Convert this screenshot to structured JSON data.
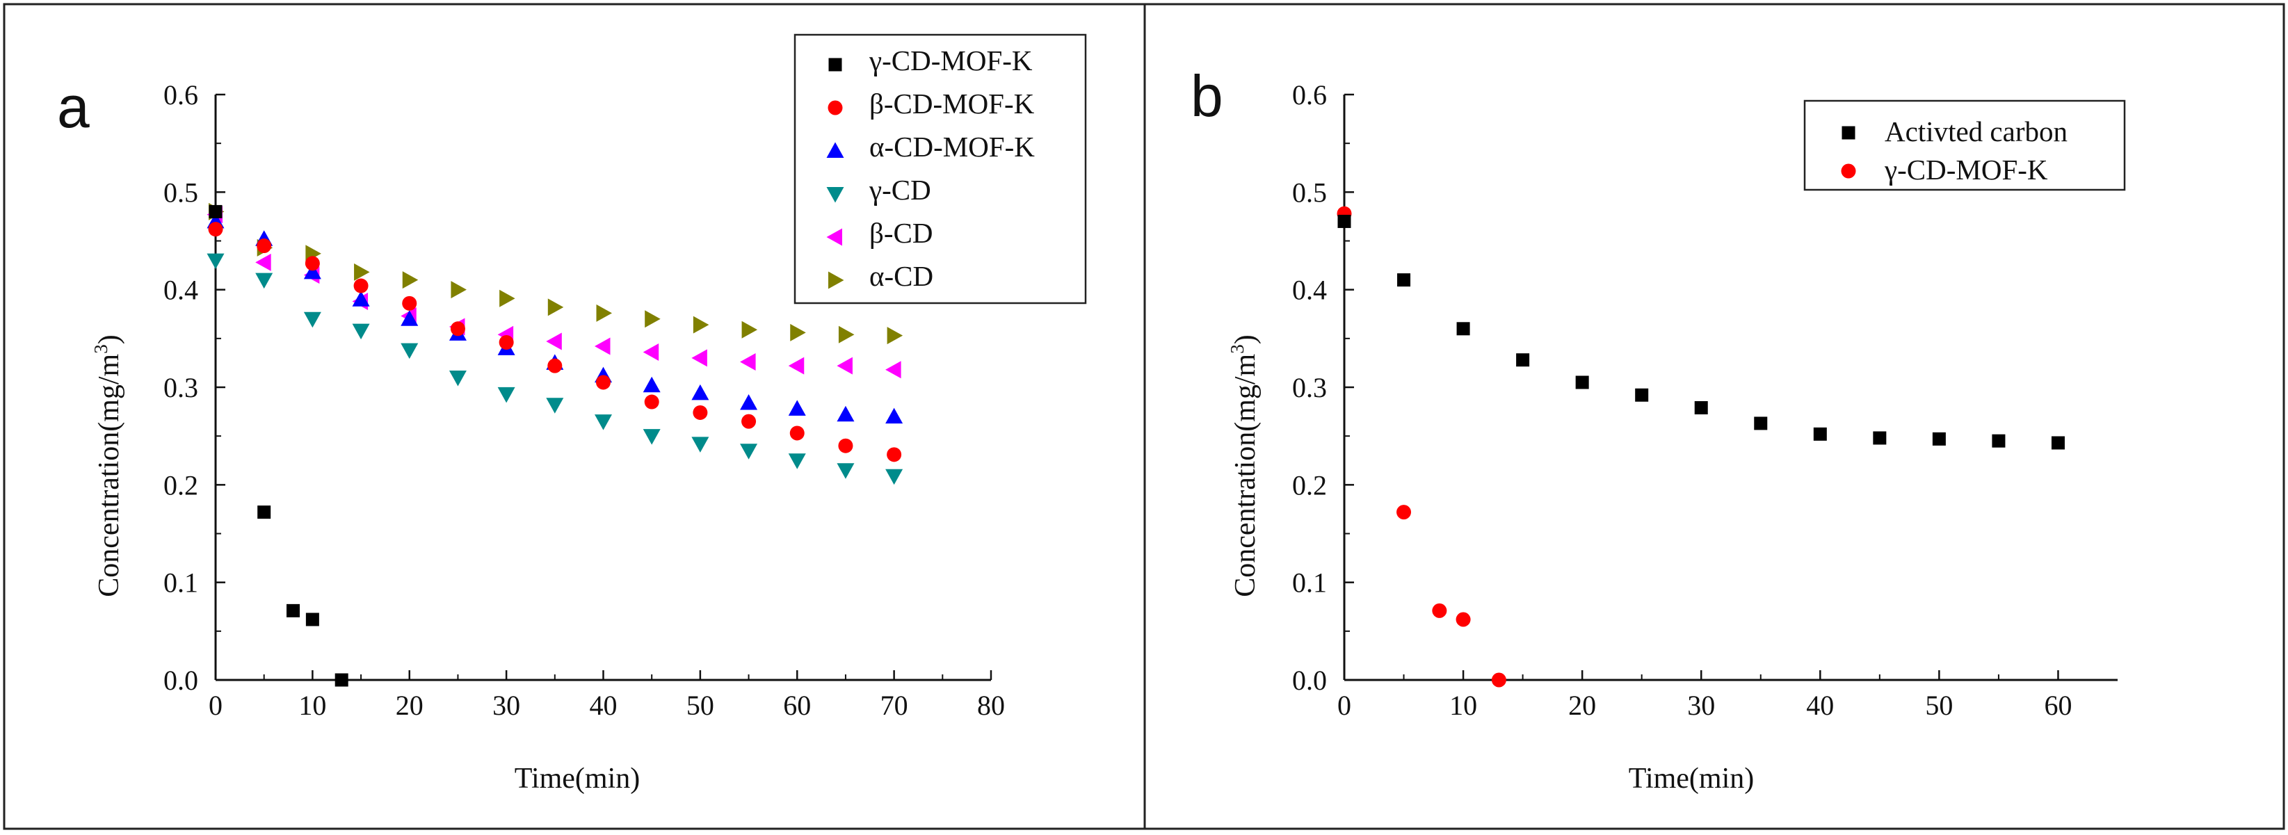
{
  "chart_data": [
    {
      "type": "scatter",
      "panel_label": "a",
      "title": "",
      "xlabel": "Time(min)",
      "ylabel": "Concentration(mg/m³)",
      "ylabel_main": "Concentration(mg/m",
      "ylabel_sup": "3",
      "ylabel_close": ")",
      "xlim": [
        0,
        80
      ],
      "ylim": [
        0,
        0.6
      ],
      "xticks": [
        "0",
        "10",
        "20",
        "30",
        "40",
        "50",
        "60",
        "70",
        "80"
      ],
      "yticks": [
        "0.0",
        "0.1",
        "0.2",
        "0.3",
        "0.4",
        "0.5",
        "0.6"
      ],
      "grid": false,
      "legend_position": "top-right",
      "series": [
        {
          "name": "γ-CD-MOF-K",
          "marker": "square",
          "color": "#000000",
          "x": [
            0,
            5,
            8,
            10,
            13
          ],
          "y": [
            0.48,
            0.172,
            0.071,
            0.062,
            0.0
          ]
        },
        {
          "name": "β-CD-MOF-K",
          "marker": "circle",
          "color": "#ff0000",
          "x": [
            0,
            5,
            10,
            15,
            20,
            25,
            30,
            35,
            40,
            45,
            50,
            55,
            60,
            65,
            70
          ],
          "y": [
            0.462,
            0.445,
            0.427,
            0.404,
            0.386,
            0.36,
            0.346,
            0.322,
            0.305,
            0.285,
            0.274,
            0.265,
            0.253,
            0.24,
            0.231
          ]
        },
        {
          "name": "α-CD-MOF-K",
          "marker": "triangle-up",
          "color": "#0000ff",
          "x": [
            0,
            5,
            10,
            15,
            20,
            25,
            30,
            35,
            40,
            45,
            50,
            55,
            60,
            65,
            70
          ],
          "y": [
            0.47,
            0.452,
            0.418,
            0.39,
            0.37,
            0.355,
            0.34,
            0.325,
            0.312,
            0.302,
            0.294,
            0.284,
            0.278,
            0.272,
            0.27
          ]
        },
        {
          "name": "γ-CD",
          "marker": "triangle-down",
          "color": "#008b8b",
          "x": [
            0,
            5,
            10,
            15,
            20,
            25,
            30,
            35,
            40,
            45,
            50,
            55,
            60,
            65,
            70
          ],
          "y": [
            0.43,
            0.41,
            0.37,
            0.358,
            0.338,
            0.31,
            0.293,
            0.282,
            0.265,
            0.25,
            0.242,
            0.235,
            0.225,
            0.215,
            0.209
          ]
        },
        {
          "name": "β-CD",
          "marker": "triangle-left",
          "color": "#ff00ff",
          "x": [
            0,
            5,
            10,
            15,
            20,
            25,
            30,
            35,
            40,
            45,
            50,
            55,
            60,
            65,
            70
          ],
          "y": [
            0.477,
            0.428,
            0.415,
            0.388,
            0.373,
            0.362,
            0.354,
            0.347,
            0.342,
            0.336,
            0.33,
            0.326,
            0.322,
            0.322,
            0.318
          ]
        },
        {
          "name": "α-CD",
          "marker": "triangle-right",
          "color": "#808000",
          "x": [
            0,
            5,
            10,
            15,
            20,
            25,
            30,
            35,
            40,
            45,
            50,
            55,
            60,
            65,
            70
          ],
          "y": [
            0.48,
            0.443,
            0.437,
            0.418,
            0.41,
            0.4,
            0.391,
            0.382,
            0.376,
            0.37,
            0.364,
            0.359,
            0.356,
            0.354,
            0.353
          ]
        }
      ]
    },
    {
      "type": "scatter",
      "panel_label": "b",
      "title": "",
      "xlabel": "Time(min)",
      "ylabel": "Concentration(mg/m³)",
      "ylabel_main": "Concentration(mg/m",
      "ylabel_sup": "3",
      "ylabel_close": ")",
      "xlim": [
        0,
        65
      ],
      "ylim": [
        0,
        0.6
      ],
      "xticks": [
        "0",
        "10",
        "20",
        "30",
        "40",
        "50",
        "60"
      ],
      "yticks": [
        "0.0",
        "0.1",
        "0.2",
        "0.3",
        "0.4",
        "0.5",
        "0.6"
      ],
      "grid": false,
      "legend_position": "top-right",
      "series": [
        {
          "name": "Activted carbon",
          "marker": "square",
          "color": "#000000",
          "x": [
            0,
            5,
            10,
            15,
            20,
            25,
            30,
            35,
            40,
            45,
            50,
            55,
            60
          ],
          "y": [
            0.47,
            0.41,
            0.36,
            0.328,
            0.305,
            0.292,
            0.279,
            0.263,
            0.252,
            0.248,
            0.247,
            0.245,
            0.243
          ]
        },
        {
          "name": "γ-CD-MOF-K",
          "marker": "circle",
          "color": "#ff0000",
          "x": [
            0,
            5,
            8,
            10,
            13
          ],
          "y": [
            0.478,
            0.172,
            0.071,
            0.062,
            0.0
          ]
        }
      ]
    }
  ]
}
